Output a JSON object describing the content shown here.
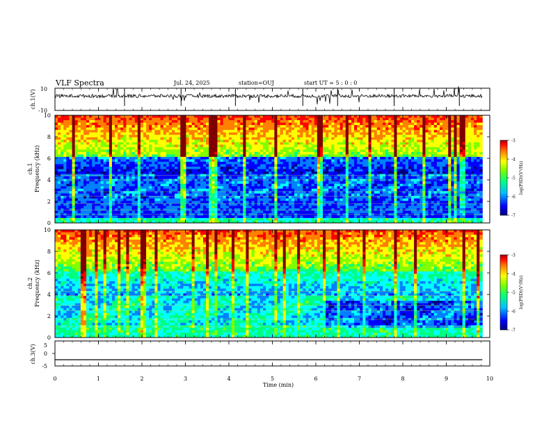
{
  "header": {
    "title": "VLF Spectra",
    "date": "Jul. 24, 2025",
    "station": "station=OUJ",
    "start": "start UT =  5 : 0 : 0"
  },
  "chart_data": [
    {
      "type": "line",
      "panel": "ch1-waveform",
      "ylabel": "ch.1(V)",
      "ylim": [
        -10,
        10
      ],
      "yticks": [
        "10",
        "-10"
      ],
      "xlim": [
        0,
        10
      ],
      "data_xlim": [
        0,
        9.83
      ],
      "baseline": 3,
      "note_shape": "noisy trace near +3 V with sparse spikes"
    },
    {
      "type": "heatmap",
      "panel": "ch1-spectrogram",
      "ylabel": [
        "ch.1",
        "Frequency (kHz)"
      ],
      "ylim": [
        0,
        10
      ],
      "yticks": [
        "0",
        "2",
        "4",
        "6",
        "8",
        "10"
      ],
      "xlim": [
        0,
        10
      ],
      "data_xlim": [
        0,
        9.83
      ],
      "colorbar": {
        "label": "log(PSD)(V²/Hz)",
        "range": [
          -7,
          -3
        ],
        "ticks": [
          "-3",
          "-4",
          "-5",
          "-6",
          "-7"
        ]
      }
    },
    {
      "type": "heatmap",
      "panel": "ch2-spectrogram",
      "ylabel": [
        "ch.2",
        "Frequency (kHz)"
      ],
      "ylim": [
        0,
        10
      ],
      "yticks": [
        "0",
        "2",
        "4",
        "6",
        "8",
        "10"
      ],
      "xlim": [
        0,
        10
      ],
      "data_xlim": [
        0,
        9.83
      ],
      "colorbar": {
        "label": "log(PSD)(V²/Hz)",
        "range": [
          -7,
          -3
        ],
        "ticks": [
          "-3",
          "-4",
          "-5",
          "-6",
          "-7"
        ]
      }
    },
    {
      "type": "line",
      "panel": "ch3-waveform",
      "ylabel": "ch.3(V)",
      "ylim": [
        -5,
        5
      ],
      "yticks": [
        "5",
        "0",
        "-5"
      ],
      "xlim": [
        0,
        10
      ],
      "data_xlim": [
        0,
        9.83
      ],
      "x": [
        0,
        9.83
      ],
      "y": [
        -2.5,
        -2.5
      ]
    }
  ],
  "xaxis": {
    "label": "Time (min)",
    "ticks": [
      "0",
      "1",
      "2",
      "3",
      "4",
      "5",
      "6",
      "7",
      "8",
      "9",
      "10"
    ]
  },
  "colormap": [
    "#000080",
    "#0000ff",
    "#0080ff",
    "#00ffff",
    "#00ff80",
    "#80ff00",
    "#ffff00",
    "#ff8000",
    "#ff0000",
    "#800000"
  ]
}
